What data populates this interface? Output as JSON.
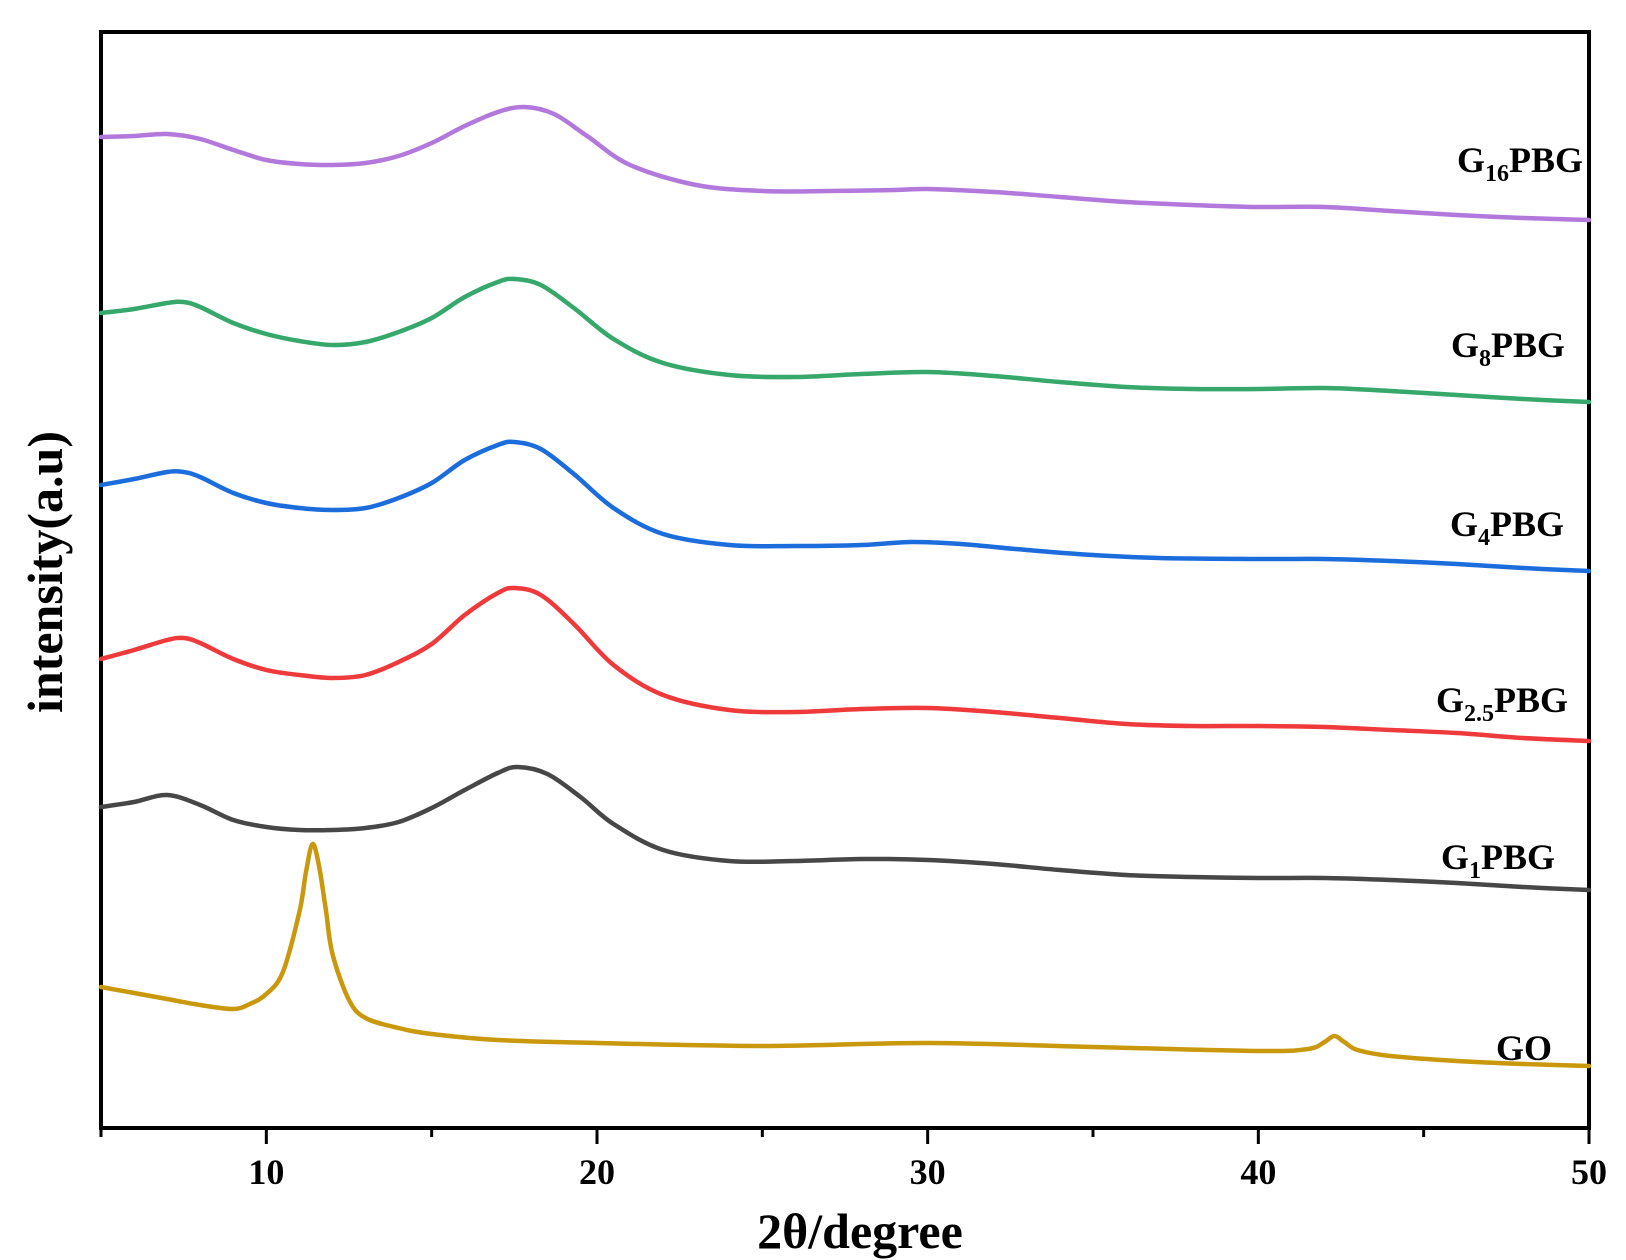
{
  "chart_data": {
    "type": "line",
    "xlabel": "2θ/degree",
    "ylabel": "intensity(a.u)",
    "xlim": [
      5,
      50
    ],
    "x_ticks": [
      10,
      20,
      30,
      40,
      50
    ],
    "y_ticks_shown": false,
    "grid": false,
    "legend": "inline labels at right end of each curve",
    "series": [
      {
        "key": "GO",
        "label": {
          "base": "G",
          "sub": "",
          "rest": "O"
        },
        "color": "#c9980c",
        "points": [
          [
            5,
            955
          ],
          [
            6,
            961
          ],
          [
            7,
            967
          ],
          [
            8,
            973
          ],
          [
            9,
            977
          ],
          [
            9.5,
            972
          ],
          [
            10,
            962
          ],
          [
            10.5,
            940
          ],
          [
            11,
            880
          ],
          [
            11.2,
            840
          ],
          [
            11.4,
            812
          ],
          [
            11.6,
            835
          ],
          [
            11.8,
            878
          ],
          [
            12,
            922
          ],
          [
            12.5,
            968
          ],
          [
            13,
            986
          ],
          [
            14,
            996
          ],
          [
            15,
            1002
          ],
          [
            17,
            1008
          ],
          [
            20,
            1011
          ],
          [
            25,
            1014
          ],
          [
            30,
            1011
          ],
          [
            35,
            1015
          ],
          [
            40,
            1019
          ],
          [
            41.5,
            1017
          ],
          [
            42,
            1010
          ],
          [
            42.3,
            1004
          ],
          [
            42.6,
            1010
          ],
          [
            43,
            1018
          ],
          [
            44,
            1024
          ],
          [
            46,
            1029
          ],
          [
            48,
            1032
          ],
          [
            50,
            1034
          ]
        ]
      },
      {
        "key": "G1PBG",
        "label": {
          "base": "G",
          "sub": "1",
          "rest": "PBG"
        },
        "color": "#474747",
        "points": [
          [
            5,
            775
          ],
          [
            6,
            770
          ],
          [
            7,
            763
          ],
          [
            8,
            773
          ],
          [
            9,
            788
          ],
          [
            10,
            795
          ],
          [
            11,
            798
          ],
          [
            12,
            798
          ],
          [
            13,
            796
          ],
          [
            14,
            790
          ],
          [
            15,
            776
          ],
          [
            16,
            758
          ],
          [
            17,
            741
          ],
          [
            17.6,
            735
          ],
          [
            18.5,
            742
          ],
          [
            19.5,
            765
          ],
          [
            20.5,
            792
          ],
          [
            22,
            818
          ],
          [
            24,
            829
          ],
          [
            26,
            829
          ],
          [
            28,
            827
          ],
          [
            30,
            828
          ],
          [
            32,
            832
          ],
          [
            34,
            838
          ],
          [
            36,
            843
          ],
          [
            38,
            845
          ],
          [
            40,
            846
          ],
          [
            42,
            846
          ],
          [
            44,
            848
          ],
          [
            46,
            851
          ],
          [
            48,
            855
          ],
          [
            50,
            858
          ]
        ]
      },
      {
        "key": "G2.5PBG",
        "label": {
          "base": "G",
          "sub": "2.5",
          "rest": "PBG"
        },
        "color": "#ee3a3a",
        "points": [
          [
            5,
            627
          ],
          [
            6,
            618
          ],
          [
            7,
            608
          ],
          [
            7.5,
            606
          ],
          [
            8,
            611
          ],
          [
            9,
            627
          ],
          [
            10,
            638
          ],
          [
            11,
            643
          ],
          [
            12,
            646
          ],
          [
            13,
            643
          ],
          [
            14,
            630
          ],
          [
            15,
            612
          ],
          [
            16,
            583
          ],
          [
            17,
            561
          ],
          [
            17.5,
            556
          ],
          [
            18.3,
            563
          ],
          [
            19.3,
            592
          ],
          [
            20.5,
            633
          ],
          [
            22,
            663
          ],
          [
            24,
            678
          ],
          [
            26,
            680
          ],
          [
            28,
            677
          ],
          [
            30,
            676
          ],
          [
            32,
            680
          ],
          [
            34,
            686
          ],
          [
            36,
            692
          ],
          [
            38,
            694
          ],
          [
            40,
            694
          ],
          [
            42,
            695
          ],
          [
            44,
            698
          ],
          [
            46,
            701
          ],
          [
            48,
            706
          ],
          [
            50,
            709
          ]
        ]
      },
      {
        "key": "G4PBG",
        "label": {
          "base": "G",
          "sub": "4",
          "rest": "PBG"
        },
        "color": "#1c6ddc",
        "points": [
          [
            5,
            453
          ],
          [
            6,
            447
          ],
          [
            7,
            440
          ],
          [
            7.5,
            440
          ],
          [
            8,
            445
          ],
          [
            9,
            461
          ],
          [
            10,
            471
          ],
          [
            11,
            476
          ],
          [
            12,
            478
          ],
          [
            13,
            476
          ],
          [
            14,
            466
          ],
          [
            15,
            451
          ],
          [
            16,
            428
          ],
          [
            17,
            413
          ],
          [
            17.5,
            410
          ],
          [
            18.3,
            417
          ],
          [
            19.3,
            442
          ],
          [
            20.5,
            476
          ],
          [
            22,
            502
          ],
          [
            24,
            513
          ],
          [
            26,
            514
          ],
          [
            28,
            513
          ],
          [
            29.5,
            510
          ],
          [
            31,
            512
          ],
          [
            33,
            518
          ],
          [
            35,
            523
          ],
          [
            37,
            526
          ],
          [
            40,
            527
          ],
          [
            42,
            527
          ],
          [
            44,
            529
          ],
          [
            46,
            532
          ],
          [
            48,
            536
          ],
          [
            50,
            539
          ]
        ]
      },
      {
        "key": "G8PBG",
        "label": {
          "base": "G",
          "sub": "8",
          "rest": "PBG"
        },
        "color": "#36a86b",
        "points": [
          [
            5,
            281
          ],
          [
            6,
            277
          ],
          [
            7,
            271
          ],
          [
            7.5,
            270
          ],
          [
            8,
            275
          ],
          [
            9,
            291
          ],
          [
            10,
            302
          ],
          [
            11,
            309
          ],
          [
            12,
            313
          ],
          [
            13,
            310
          ],
          [
            14,
            300
          ],
          [
            15,
            286
          ],
          [
            16,
            265
          ],
          [
            17,
            250
          ],
          [
            17.5,
            247
          ],
          [
            18.3,
            253
          ],
          [
            19.3,
            276
          ],
          [
            20.5,
            307
          ],
          [
            22,
            331
          ],
          [
            24,
            343
          ],
          [
            26,
            345
          ],
          [
            28,
            342
          ],
          [
            30,
            340
          ],
          [
            32,
            344
          ],
          [
            34,
            350
          ],
          [
            36,
            355
          ],
          [
            38,
            357
          ],
          [
            40,
            357
          ],
          [
            42,
            356
          ],
          [
            44,
            359
          ],
          [
            46,
            363
          ],
          [
            48,
            367
          ],
          [
            50,
            370
          ]
        ]
      },
      {
        "key": "G16PBG",
        "label": {
          "base": "G",
          "sub": "16",
          "rest": "PBG"
        },
        "color": "#b278dc",
        "points": [
          [
            5,
            105
          ],
          [
            6,
            104
          ],
          [
            7,
            102
          ],
          [
            8,
            107
          ],
          [
            9,
            118
          ],
          [
            10,
            128
          ],
          [
            11,
            132
          ],
          [
            12,
            133
          ],
          [
            13,
            131
          ],
          [
            14,
            124
          ],
          [
            15,
            111
          ],
          [
            16,
            94
          ],
          [
            17,
            80
          ],
          [
            17.8,
            75
          ],
          [
            18.7,
            82
          ],
          [
            19.7,
            104
          ],
          [
            21,
            133
          ],
          [
            23,
            153
          ],
          [
            25,
            159
          ],
          [
            27,
            159
          ],
          [
            29,
            158
          ],
          [
            30,
            157
          ],
          [
            32,
            160
          ],
          [
            34,
            165
          ],
          [
            36,
            170
          ],
          [
            38,
            173
          ],
          [
            40,
            175
          ],
          [
            42,
            175
          ],
          [
            44,
            179
          ],
          [
            46,
            183
          ],
          [
            48,
            186
          ],
          [
            50,
            188
          ]
        ]
      }
    ]
  }
}
